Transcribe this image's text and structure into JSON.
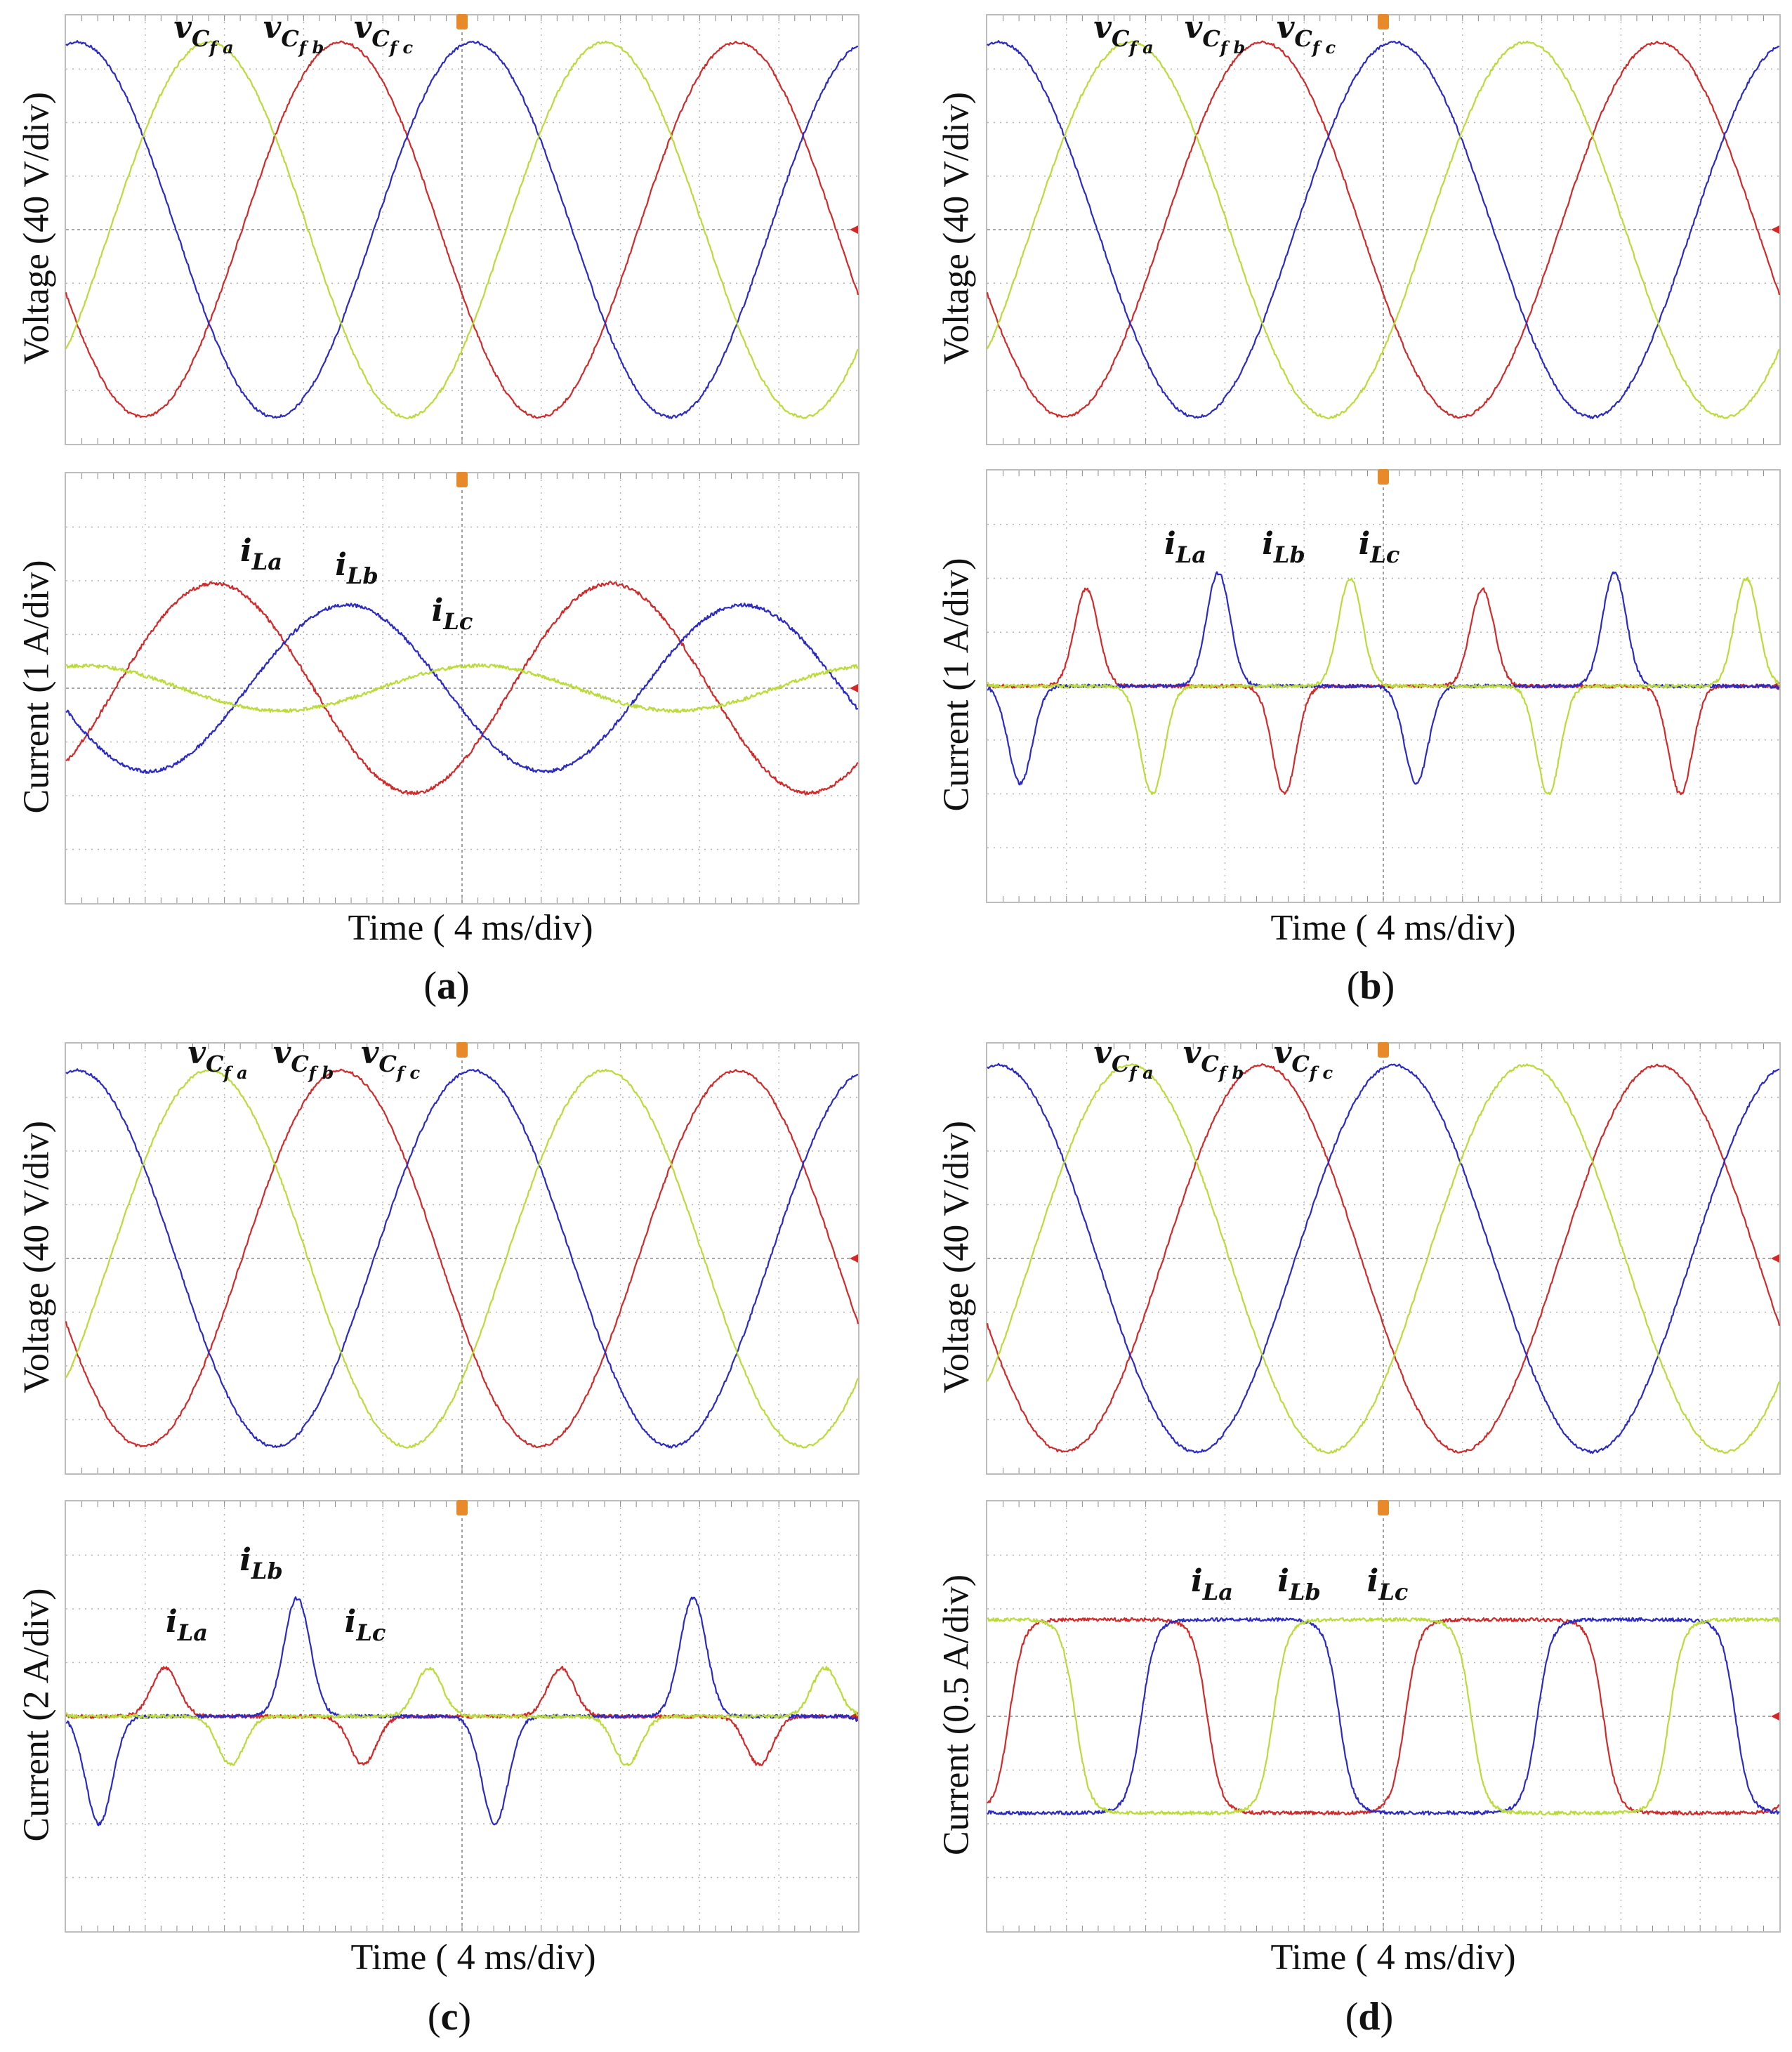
{
  "colors": {
    "a": "#d12a2a",
    "b": "#2b2bc4",
    "c": "#b9dc3a",
    "grid": "#b4b4b4",
    "axis": "#8a8a8a",
    "frame": "#bdbdbd",
    "marker": "#e8892a"
  },
  "trace_labels": {
    "voltage": [
      {
        "base": "v",
        "sub": "C",
        "subsub": "f",
        "suffix": "a"
      },
      {
        "base": "v",
        "sub": "C",
        "subsub": "f",
        "suffix": "b"
      },
      {
        "base": "v",
        "sub": "C",
        "subsub": "f",
        "suffix": "c"
      }
    ],
    "current": [
      {
        "base": "i",
        "sub": "L",
        "suffix": "a"
      },
      {
        "base": "i",
        "sub": "L",
        "suffix": "b"
      },
      {
        "base": "i",
        "sub": "L",
        "suffix": "c"
      }
    ]
  },
  "chart_data": [
    {
      "id": "a",
      "type": "line",
      "caption_letter": "a",
      "xlabel": "Time ( 4 ms/div)",
      "x_divisions": 10,
      "x_unit": "ms",
      "x_per_div": 4,
      "voltage": {
        "ylabel": "Voltage (40 V/div)",
        "y_divisions": 8,
        "y_per_div": 40,
        "frequency_hz": 50,
        "peak_div": 3.5,
        "series": [
          {
            "name": "vCfa",
            "phase_deg": 0
          },
          {
            "name": "vCfb",
            "phase_deg": -120
          },
          {
            "name": "vCfc",
            "phase_deg": 120
          }
        ]
      },
      "current": {
        "ylabel": "Current (1 A/div)",
        "y_divisions": 8,
        "y_per_div": 1,
        "waveform": "sine",
        "frequency_hz": 50,
        "series": [
          {
            "name": "iLa",
            "peak_div": 1.95,
            "phase_deg": -45
          },
          {
            "name": "iLb",
            "peak_div": 1.55,
            "phase_deg": -165
          },
          {
            "name": "iLc",
            "peak_div": 0.42,
            "phase_deg": 75
          }
        ]
      }
    },
    {
      "id": "b",
      "type": "line",
      "caption_letter": "b",
      "xlabel": "Time ( 4 ms/div)",
      "x_divisions": 10,
      "x_unit": "ms",
      "x_per_div": 4,
      "voltage": {
        "ylabel": "Voltage (40 V/div)",
        "y_divisions": 8,
        "y_per_div": 40,
        "frequency_hz": 50,
        "peak_div": 3.5,
        "series": [
          {
            "name": "vCfa",
            "phase_deg": 0
          },
          {
            "name": "vCfb",
            "phase_deg": -120
          },
          {
            "name": "vCfc",
            "phase_deg": 120
          }
        ]
      },
      "current": {
        "ylabel": "Current (1 A/div)",
        "y_divisions": 8,
        "y_per_div": 1,
        "waveform": "pulse",
        "frequency_hz": 50,
        "pulse_width_ms": 1.8,
        "offset_div": 0,
        "series": [
          {
            "name": "iLa",
            "pos_div": 1.8,
            "neg_div": -2.0,
            "phase_deg": 0
          },
          {
            "name": "iLb",
            "pos_div": 2.1,
            "neg_div": -1.8,
            "phase_deg": -120
          },
          {
            "name": "iLc",
            "pos_div": 2.0,
            "neg_div": -2.0,
            "phase_deg": 120
          }
        ]
      }
    },
    {
      "id": "c",
      "type": "line",
      "caption_letter": "c",
      "xlabel": "Time ( 4 ms/div)",
      "x_divisions": 10,
      "x_unit": "ms",
      "x_per_div": 4,
      "voltage": {
        "ylabel": "Voltage (40 V/div)",
        "y_divisions": 8,
        "y_per_div": 40,
        "frequency_hz": 50,
        "peak_div": 3.5,
        "series": [
          {
            "name": "vCfa",
            "phase_deg": 0
          },
          {
            "name": "vCfb",
            "phase_deg": -120
          },
          {
            "name": "vCfc",
            "phase_deg": 120
          }
        ]
      },
      "current": {
        "ylabel": "Current (2 A/div)",
        "y_divisions": 8,
        "y_per_div": 2,
        "waveform": "pulse",
        "frequency_hz": 50,
        "pulse_width_ms": 2.0,
        "offset_div": 0,
        "series": [
          {
            "name": "iLa",
            "pos_div": 0.9,
            "neg_div": -0.9,
            "phase_deg": 0
          },
          {
            "name": "iLb",
            "pos_div": 2.2,
            "neg_div": -2.0,
            "phase_deg": -120
          },
          {
            "name": "iLc",
            "pos_div": 0.9,
            "neg_div": -0.9,
            "phase_deg": 120
          }
        ]
      }
    },
    {
      "id": "d",
      "type": "line",
      "caption_letter": "d",
      "xlabel": "Time ( 4 ms/div)",
      "x_divisions": 10,
      "x_unit": "ms",
      "x_per_div": 4,
      "voltage": {
        "ylabel": "Voltage (40 V/div)",
        "y_divisions": 8,
        "y_per_div": 40,
        "frequency_hz": 50,
        "peak_div": 3.6,
        "series": [
          {
            "name": "vCfa",
            "phase_deg": 0
          },
          {
            "name": "vCfb",
            "phase_deg": -120
          },
          {
            "name": "vCfc",
            "phase_deg": 120
          }
        ]
      },
      "current": {
        "ylabel": "Current (0.5 A/div)",
        "y_divisions": 8,
        "y_per_div": 0.5,
        "waveform": "square",
        "frequency_hz": 50,
        "amplitude_div": 1.8,
        "series": [
          {
            "name": "iLa",
            "phase_deg": -20
          },
          {
            "name": "iLb",
            "phase_deg": -140
          },
          {
            "name": "iLc",
            "phase_deg": 100
          }
        ]
      }
    }
  ]
}
